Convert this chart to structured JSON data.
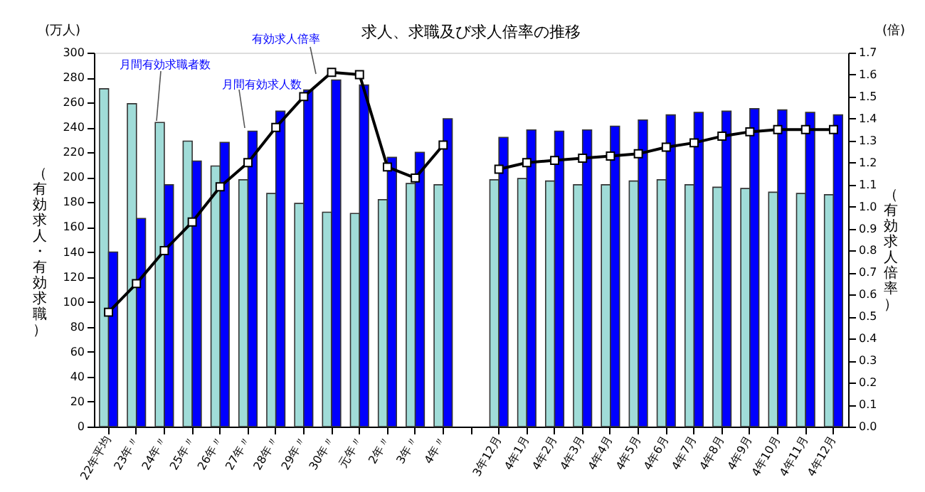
{
  "chart_data": {
    "type": "bar",
    "title": "求人、求職及び求人倍率の推移",
    "ylabel": "（有効求人・有効求職）",
    "y2label": "（有効求人倍率）",
    "annotations": [
      "(万人)",
      "(倍)"
    ],
    "categories": [
      "22年平均",
      "23年〃",
      "24年〃",
      "25年〃",
      "26年〃",
      "27年〃",
      "28年〃",
      "29年〃",
      "30年〃",
      "元年〃",
      "2年〃",
      "3年〃",
      "4年〃",
      null,
      "3年12月",
      "4年1月",
      "4年2月",
      "4年3月",
      "4年4月",
      "4年5月",
      "4年6月",
      "4年7月",
      "4年8月",
      "4年9月",
      "4年10月",
      "4年11月",
      "4年12月"
    ],
    "series": [
      {
        "name": "月間有効求職者数",
        "color": "#a0dcd8",
        "values": [
          271,
          259,
          244,
          229,
          209,
          198,
          187,
          179,
          172,
          171,
          182,
          195,
          194,
          null,
          198,
          199,
          197,
          194,
          194,
          197,
          198,
          194,
          192,
          191,
          188,
          187,
          186
        ]
      },
      {
        "name": "月間有効求人数",
        "color": "#0000ff",
        "values": [
          140,
          167,
          194,
          213,
          228,
          237,
          253,
          270,
          278,
          274,
          216,
          220,
          247,
          null,
          232,
          238,
          237,
          238,
          241,
          246,
          250,
          252,
          253,
          255,
          254,
          252,
          250
        ]
      },
      {
        "name": "有効求人倍率",
        "type": "line",
        "axis": "y2",
        "marker": "square",
        "color": "#000000",
        "values": [
          0.52,
          0.65,
          0.8,
          0.93,
          1.09,
          1.2,
          1.36,
          1.5,
          1.61,
          1.6,
          1.18,
          1.13,
          1.28,
          null,
          1.17,
          1.2,
          1.21,
          1.22,
          1.23,
          1.24,
          1.27,
          1.29,
          1.32,
          1.34,
          1.35,
          1.35,
          1.35
        ]
      }
    ],
    "ylim": [
      0,
      300
    ],
    "yticks": [
      0,
      20,
      40,
      60,
      80,
      100,
      120,
      140,
      160,
      180,
      200,
      220,
      240,
      260,
      280,
      300
    ],
    "y2lim": [
      0,
      1.7
    ],
    "y2ticks": [
      {
        "value": 0,
        "label": "0.0"
      },
      {
        "value": 0.1,
        "label": "0.1"
      },
      {
        "value": 0.2,
        "label": "0.2"
      },
      {
        "value": 0.3,
        "label": "0.3"
      },
      {
        "value": 0.4,
        "label": "0.4"
      },
      {
        "value": 0.5,
        "label": "0.5"
      },
      {
        "value": 0.6,
        "label": "0.6"
      },
      {
        "value": 0.7,
        "label": "0.7"
      },
      {
        "value": 0.8,
        "label": "0.8"
      },
      {
        "value": 0.9,
        "label": "0.9"
      },
      {
        "value": 1.0,
        "label": "1.0"
      },
      {
        "value": 1.1,
        "label": "1.1"
      },
      {
        "value": 1.2,
        "label": "1.2"
      },
      {
        "value": 1.3,
        "label": "1.3"
      },
      {
        "value": 1.4,
        "label": "1.4"
      },
      {
        "value": 1.5,
        "label": "1.5"
      },
      {
        "value": 1.6,
        "label": "1.6"
      },
      {
        "value": 1.7,
        "label": "1.7"
      }
    ]
  }
}
